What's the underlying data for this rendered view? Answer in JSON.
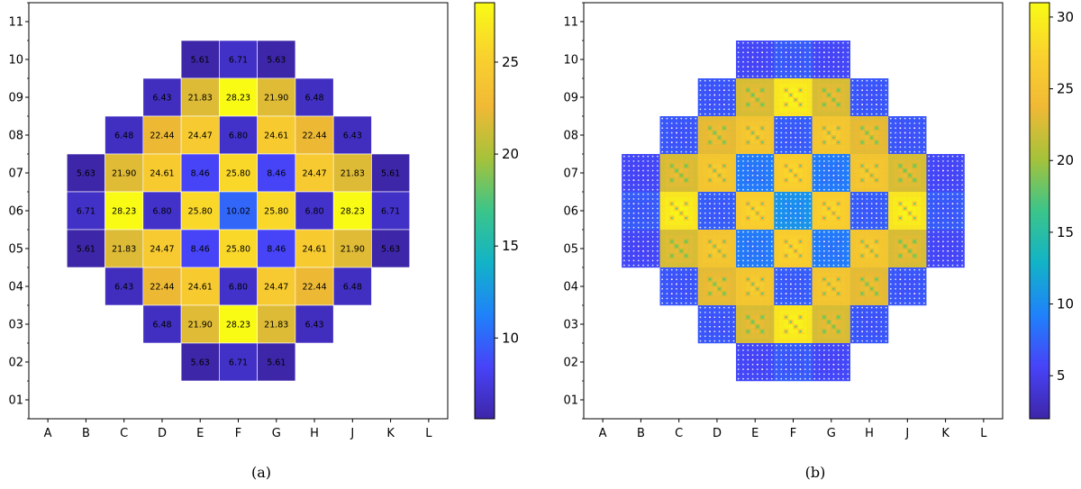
{
  "chart_data": [
    {
      "type": "heatmap",
      "caption": "(a)",
      "x_ticks": [
        "A",
        "B",
        "C",
        "D",
        "E",
        "F",
        "G",
        "H",
        "J",
        "K",
        "L"
      ],
      "y_ticks": [
        "01",
        "02",
        "03",
        "04",
        "05",
        "06",
        "07",
        "08",
        "09",
        "10",
        "11"
      ],
      "colorbar": {
        "min": 5.61,
        "max": 28.23,
        "ticks": [
          "10",
          "15",
          "20",
          "25"
        ]
      },
      "rows": [
        {
          "y": "10",
          "cells": [
            {
              "x": "E",
              "v": 5.61,
              "label": "5.61"
            },
            {
              "x": "F",
              "v": 6.71,
              "label": "6.71"
            },
            {
              "x": "G",
              "v": 5.63,
              "label": "5.63"
            }
          ]
        },
        {
          "y": "09",
          "cells": [
            {
              "x": "D",
              "v": 6.43,
              "label": "6.43"
            },
            {
              "x": "E",
              "v": 21.83,
              "label": "21.83"
            },
            {
              "x": "F",
              "v": 28.23,
              "label": "28.23"
            },
            {
              "x": "G",
              "v": 21.9,
              "label": "21.90"
            },
            {
              "x": "H",
              "v": 6.48,
              "label": "6.48"
            }
          ]
        },
        {
          "y": "08",
          "cells": [
            {
              "x": "C",
              "v": 6.48,
              "label": "6.48"
            },
            {
              "x": "D",
              "v": 22.44,
              "label": "22.44"
            },
            {
              "x": "E",
              "v": 24.47,
              "label": "24.47"
            },
            {
              "x": "F",
              "v": 6.8,
              "label": "6.80"
            },
            {
              "x": "G",
              "v": 24.61,
              "label": "24.61"
            },
            {
              "x": "H",
              "v": 22.44,
              "label": "22.44"
            },
            {
              "x": "J",
              "v": 6.43,
              "label": "6.43"
            }
          ]
        },
        {
          "y": "07",
          "cells": [
            {
              "x": "B",
              "v": 5.63,
              "label": "5.63"
            },
            {
              "x": "C",
              "v": 21.9,
              "label": "21.90"
            },
            {
              "x": "D",
              "v": 24.61,
              "label": "24.61"
            },
            {
              "x": "E",
              "v": 8.46,
              "label": "8.46"
            },
            {
              "x": "F",
              "v": 25.8,
              "label": "25.80"
            },
            {
              "x": "G",
              "v": 8.46,
              "label": "8.46"
            },
            {
              "x": "H",
              "v": 24.47,
              "label": "24.47"
            },
            {
              "x": "J",
              "v": 21.83,
              "label": "21.83"
            },
            {
              "x": "K",
              "v": 5.61,
              "label": "5.61"
            }
          ]
        },
        {
          "y": "06",
          "cells": [
            {
              "x": "B",
              "v": 6.71,
              "label": "6.71"
            },
            {
              "x": "C",
              "v": 28.23,
              "label": "28.23"
            },
            {
              "x": "D",
              "v": 6.8,
              "label": "6.80"
            },
            {
              "x": "E",
              "v": 25.8,
              "label": "25.80"
            },
            {
              "x": "F",
              "v": 10.02,
              "label": "10.02"
            },
            {
              "x": "G",
              "v": 25.8,
              "label": "25.80"
            },
            {
              "x": "H",
              "v": 6.8,
              "label": "6.80"
            },
            {
              "x": "J",
              "v": 28.23,
              "label": "28.23"
            },
            {
              "x": "K",
              "v": 6.71,
              "label": "6.71"
            }
          ]
        },
        {
          "y": "05",
          "cells": [
            {
              "x": "B",
              "v": 5.61,
              "label": "5.61"
            },
            {
              "x": "C",
              "v": 21.83,
              "label": "21.83"
            },
            {
              "x": "D",
              "v": 24.47,
              "label": "24.47"
            },
            {
              "x": "E",
              "v": 8.46,
              "label": "8.46"
            },
            {
              "x": "F",
              "v": 25.8,
              "label": "25.80"
            },
            {
              "x": "G",
              "v": 8.46,
              "label": "8.46"
            },
            {
              "x": "H",
              "v": 24.61,
              "label": "24.61"
            },
            {
              "x": "J",
              "v": 21.9,
              "label": "21.90"
            },
            {
              "x": "K",
              "v": 5.63,
              "label": "5.63"
            }
          ]
        },
        {
          "y": "04",
          "cells": [
            {
              "x": "C",
              "v": 6.43,
              "label": "6.43"
            },
            {
              "x": "D",
              "v": 22.44,
              "label": "22.44"
            },
            {
              "x": "E",
              "v": 24.61,
              "label": "24.61"
            },
            {
              "x": "F",
              "v": 6.8,
              "label": "6.80"
            },
            {
              "x": "G",
              "v": 24.47,
              "label": "24.47"
            },
            {
              "x": "H",
              "v": 22.44,
              "label": "22.44"
            },
            {
              "x": "J",
              "v": 6.48,
              "label": "6.48"
            }
          ]
        },
        {
          "y": "03",
          "cells": [
            {
              "x": "D",
              "v": 6.48,
              "label": "6.48"
            },
            {
              "x": "E",
              "v": 21.9,
              "label": "21.90"
            },
            {
              "x": "F",
              "v": 28.23,
              "label": "28.23"
            },
            {
              "x": "G",
              "v": 21.83,
              "label": "21.83"
            },
            {
              "x": "H",
              "v": 6.43,
              "label": "6.43"
            }
          ]
        },
        {
          "y": "02",
          "cells": [
            {
              "x": "E",
              "v": 5.63,
              "label": "5.63"
            },
            {
              "x": "F",
              "v": 6.71,
              "label": "6.71"
            },
            {
              "x": "G",
              "v": 5.61,
              "label": "5.61"
            }
          ]
        }
      ]
    },
    {
      "type": "heatmap",
      "caption": "(b)",
      "description_kind": "pin-level power distribution (same assembly layout as (a))",
      "x_ticks": [
        "A",
        "B",
        "C",
        "D",
        "E",
        "F",
        "G",
        "H",
        "J",
        "K",
        "L"
      ],
      "y_ticks": [
        "01",
        "02",
        "03",
        "04",
        "05",
        "06",
        "07",
        "08",
        "09",
        "10",
        "11"
      ],
      "colorbar": {
        "min": 2,
        "max": 31,
        "ticks": [
          "5",
          "10",
          "15",
          "20",
          "25",
          "30"
        ]
      },
      "assembly_values_from": "(a)"
    }
  ],
  "colormap": {
    "stops": [
      "#3e26a8",
      "#4743f8",
      "#1f82fa",
      "#12b3c7",
      "#3bc58a",
      "#a6c23a",
      "#f1b935",
      "#f9d22e",
      "#f9fb15"
    ]
  }
}
